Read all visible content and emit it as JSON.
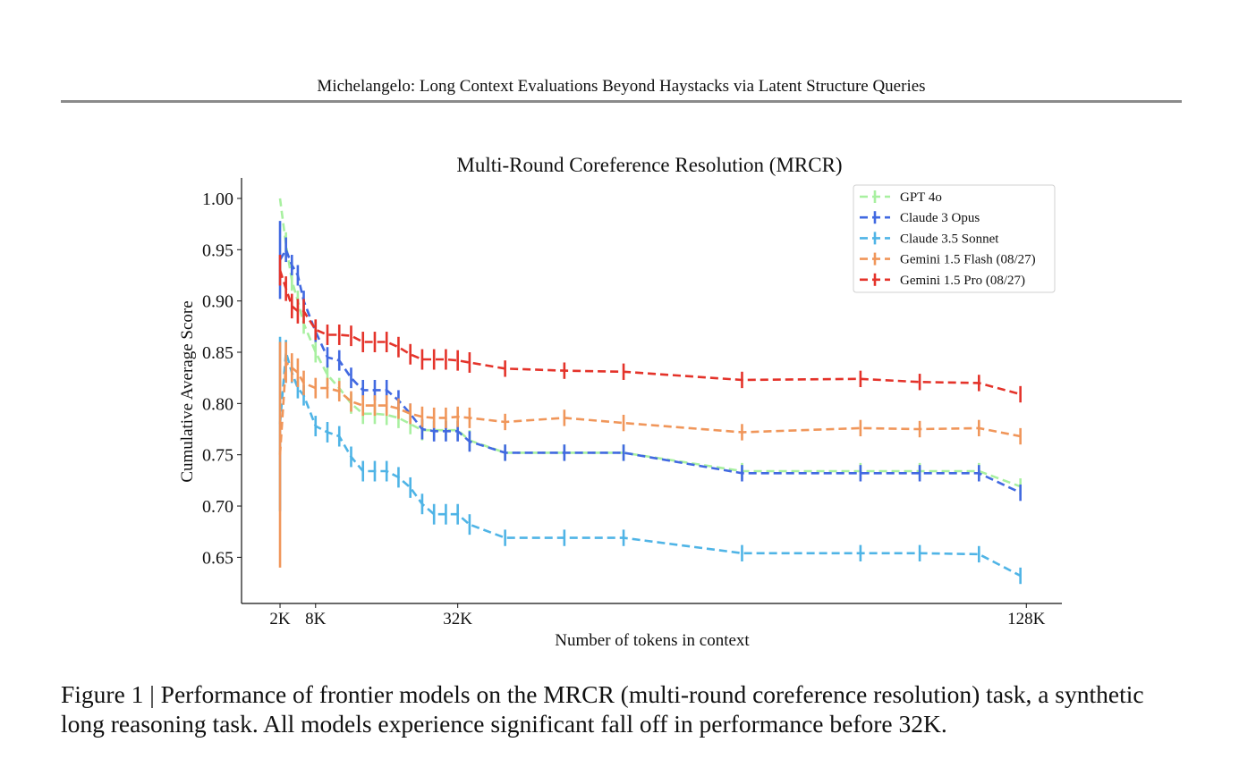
{
  "page": {
    "running_header": "Michelangelo: Long Context Evaluations Beyond Haystacks via Latent Structure Queries",
    "caption": "Figure 1 | Performance of frontier models on the MRCR (multi-round coreference resolution) task, a synthetic long reasoning task. All models experience significant fall off in performance before 32K."
  },
  "chart_data": {
    "type": "line",
    "title": "Multi-Round Coreference Resolution (MRCR)",
    "xlabel": "Number of tokens in context",
    "ylabel": "Cumulative Average Score",
    "xlim": [
      -4.5,
      134
    ],
    "ylim": [
      0.605,
      1.02
    ],
    "xticks": [
      {
        "value": 2,
        "label": "2K"
      },
      {
        "value": 8,
        "label": "8K"
      },
      {
        "value": 32,
        "label": "32K"
      },
      {
        "value": 128,
        "label": "128K"
      }
    ],
    "yticks": [
      {
        "value": 0.65,
        "label": "0.65"
      },
      {
        "value": 0.7,
        "label": "0.70"
      },
      {
        "value": 0.75,
        "label": "0.75"
      },
      {
        "value": 0.8,
        "label": "0.80"
      },
      {
        "value": 0.85,
        "label": "0.85"
      },
      {
        "value": 0.9,
        "label": "0.90"
      },
      {
        "value": 0.95,
        "label": "0.95"
      },
      {
        "value": 1.0,
        "label": "1.00"
      }
    ],
    "grid": false,
    "legend_position": "top-right",
    "line_style": "dashed with error bars",
    "x": [
      2,
      3,
      4,
      5,
      6,
      8,
      10,
      12,
      14,
      16,
      18,
      20,
      22,
      24,
      26,
      28,
      30,
      32,
      34,
      40,
      50,
      60,
      80,
      100,
      110,
      120,
      127
    ],
    "series": [
      {
        "name": "GPT 4o",
        "color": "#a8f0a0",
        "values": [
          1.0,
          0.955,
          0.92,
          0.9,
          0.878,
          0.85,
          0.828,
          0.815,
          0.8,
          0.79,
          0.79,
          0.789,
          0.786,
          0.78,
          0.774,
          0.774,
          0.774,
          0.774,
          0.764,
          0.752,
          0.752,
          0.752,
          0.734,
          0.734,
          0.734,
          0.734,
          0.719
        ],
        "errors": [
          0.0,
          0.012,
          0.01,
          0.01,
          0.01,
          0.01,
          0.01,
          0.01,
          0.01,
          0.01,
          0.01,
          0.01,
          0.01,
          0.01,
          0.01,
          0.01,
          0.01,
          0.01,
          0.01,
          0.008,
          0.008,
          0.008,
          0.008,
          0.008,
          0.008,
          0.008,
          0.008
        ]
      },
      {
        "name": "Claude 3 Opus",
        "color": "#4169e1",
        "values": [
          0.94,
          0.95,
          0.935,
          0.925,
          0.9,
          0.87,
          0.845,
          0.842,
          0.825,
          0.813,
          0.813,
          0.813,
          0.803,
          0.79,
          0.775,
          0.773,
          0.773,
          0.773,
          0.763,
          0.752,
          0.752,
          0.752,
          0.732,
          0.732,
          0.732,
          0.732,
          0.713
        ],
        "errors": [
          0.038,
          0.012,
          0.01,
          0.01,
          0.01,
          0.01,
          0.01,
          0.01,
          0.01,
          0.01,
          0.01,
          0.01,
          0.01,
          0.01,
          0.01,
          0.01,
          0.01,
          0.01,
          0.01,
          0.008,
          0.008,
          0.008,
          0.008,
          0.008,
          0.008,
          0.008,
          0.008
        ]
      },
      {
        "name": "Claude 3.5 Sonnet",
        "color": "#4fb4e6",
        "values": [
          0.78,
          0.85,
          0.83,
          0.815,
          0.808,
          0.778,
          0.772,
          0.768,
          0.748,
          0.734,
          0.734,
          0.734,
          0.728,
          0.718,
          0.702,
          0.692,
          0.692,
          0.692,
          0.682,
          0.669,
          0.669,
          0.669,
          0.654,
          0.654,
          0.654,
          0.653,
          0.632
        ],
        "errors": [
          0.085,
          0.012,
          0.01,
          0.01,
          0.01,
          0.01,
          0.01,
          0.01,
          0.01,
          0.01,
          0.01,
          0.01,
          0.01,
          0.01,
          0.01,
          0.01,
          0.01,
          0.01,
          0.01,
          0.008,
          0.008,
          0.008,
          0.008,
          0.008,
          0.008,
          0.008,
          0.008
        ]
      },
      {
        "name": "Gemini 1.5 Flash (08/27)",
        "color": "#f0965a",
        "values": [
          0.75,
          0.84,
          0.835,
          0.83,
          0.82,
          0.815,
          0.815,
          0.812,
          0.802,
          0.798,
          0.798,
          0.798,
          0.795,
          0.79,
          0.787,
          0.786,
          0.786,
          0.787,
          0.786,
          0.782,
          0.786,
          0.781,
          0.772,
          0.776,
          0.775,
          0.776,
          0.768
        ],
        "errors": [
          0.11,
          0.02,
          0.014,
          0.014,
          0.012,
          0.01,
          0.01,
          0.01,
          0.01,
          0.01,
          0.01,
          0.01,
          0.01,
          0.01,
          0.01,
          0.01,
          0.01,
          0.01,
          0.01,
          0.008,
          0.008,
          0.008,
          0.008,
          0.008,
          0.008,
          0.008,
          0.008
        ]
      },
      {
        "name": "Gemini 1.5 Pro (08/27)",
        "color": "#e4332a",
        "values": [
          0.93,
          0.912,
          0.895,
          0.89,
          0.89,
          0.872,
          0.867,
          0.867,
          0.866,
          0.86,
          0.86,
          0.86,
          0.855,
          0.848,
          0.843,
          0.843,
          0.843,
          0.842,
          0.84,
          0.834,
          0.832,
          0.831,
          0.823,
          0.824,
          0.821,
          0.82,
          0.809
        ],
        "errors": [
          0.015,
          0.012,
          0.012,
          0.012,
          0.012,
          0.01,
          0.01,
          0.01,
          0.01,
          0.01,
          0.01,
          0.01,
          0.01,
          0.01,
          0.01,
          0.01,
          0.01,
          0.01,
          0.01,
          0.008,
          0.008,
          0.008,
          0.008,
          0.008,
          0.008,
          0.008,
          0.008
        ]
      }
    ]
  }
}
